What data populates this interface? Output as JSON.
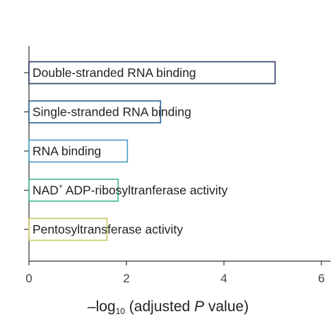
{
  "chart_data": {
    "type": "bar",
    "orientation": "horizontal",
    "categories": [
      "Double-stranded RNA binding",
      "Single-stranded RNA binding",
      "RNA binding",
      "NAD+ ADP-ribosyltranferase activity",
      "Pentosyltransferase activity"
    ],
    "values": [
      5.05,
      2.7,
      2.02,
      1.83,
      1.6
    ],
    "colors": [
      "#2b3a67",
      "#2f5f8f",
      "#4a9bc4",
      "#3fb59a",
      "#c9c95a"
    ],
    "bar_style": "outlined",
    "xlim": [
      0,
      6
    ],
    "xticks": [
      0,
      2,
      4,
      6
    ],
    "xlabel": {
      "prefix": "–log",
      "subscript": "10",
      "middle": " (adjusted ",
      "italic": "P",
      "suffix": " value)"
    },
    "ylabel": "",
    "grid": false,
    "legend": "none"
  }
}
